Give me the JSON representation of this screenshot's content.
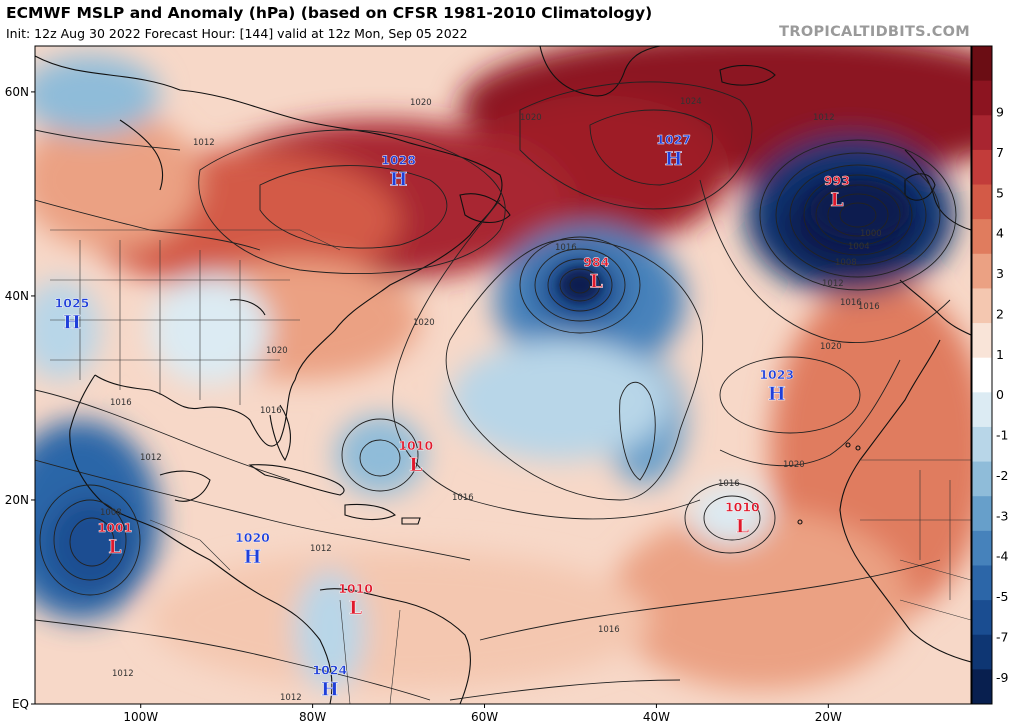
{
  "header": {
    "title": "ECMWF MSLP and Anomaly (hPa) (based on CFSR 1981-2010 Climatology)",
    "subtitle": "Init: 12z Aug 30 2022   Forecast Hour: [144]   valid at 12z Mon, Sep 05 2022",
    "credit": "TROPICALTIDBITS.COM"
  },
  "axes": {
    "lat_labels": [
      "60N",
      "40N",
      "20N",
      "EQ"
    ],
    "lon_labels": [
      "100W",
      "80W",
      "60W",
      "40W",
      "20W"
    ]
  },
  "colorbar": {
    "labels": [
      "9",
      "7",
      "5",
      "4",
      "3",
      "2",
      "1",
      "0",
      "-1",
      "-2",
      "-3",
      "-4",
      "-5",
      "-7",
      "-9"
    ],
    "colors": [
      "#6b0d14",
      "#8c1420",
      "#a82530",
      "#c23c3a",
      "#d35a47",
      "#e07c5e",
      "#eba183",
      "#f4c7b0",
      "#f9e4d8",
      "#ffffff",
      "#dcebf3",
      "#b8d6e8",
      "#8fbcd9",
      "#679fca",
      "#4682bb",
      "#2c66a8",
      "#1a4d91",
      "#0e3673",
      "#081f4f"
    ]
  },
  "pressure_centers": [
    {
      "id": "canada-high",
      "value": "1028",
      "type": "H",
      "lat": 52,
      "lon": -70
    },
    {
      "id": "atlantic-high-north",
      "value": "1027",
      "type": "H",
      "lat": 54,
      "lon": -38
    },
    {
      "id": "east-atlantic-low",
      "value": "993",
      "type": "L",
      "lat": 50,
      "lon": -19
    },
    {
      "id": "central-atlantic-low",
      "value": "984",
      "type": "L",
      "lat": 42,
      "lon": -47
    },
    {
      "id": "west-high",
      "value": "1025",
      "type": "H",
      "lat": 38,
      "lon": -108
    },
    {
      "id": "azores-high",
      "value": "1023",
      "type": "H",
      "lat": 31,
      "lon": -26
    },
    {
      "id": "bahamas-low",
      "value": "1010",
      "type": "L",
      "lat": 24,
      "lon": -68
    },
    {
      "id": "cape-verde-low",
      "value": "1010",
      "type": "L",
      "lat": 18,
      "lon": -30
    },
    {
      "id": "pacific-low",
      "value": "1001",
      "type": "L",
      "lat": 16,
      "lon": -103
    },
    {
      "id": "central-america-high",
      "value": "1020",
      "type": "H",
      "lat": 15,
      "lon": -87
    },
    {
      "id": "colombia-low",
      "value": "1010",
      "type": "L",
      "lat": 10,
      "lon": -75
    },
    {
      "id": "andes-high",
      "value": "1024",
      "type": "H",
      "lat": 2,
      "lon": -78
    }
  ],
  "isobar_labels": [
    "1012",
    "1020",
    "1020",
    "1016",
    "1012",
    "1020",
    "1016",
    "1012",
    "1016",
    "1016",
    "1016",
    "1016",
    "1016",
    "1020",
    "1020",
    "1008",
    "1012",
    "1012",
    "1012",
    "1024",
    "1020",
    "1016",
    "1012",
    "1008",
    "1004",
    "1000"
  ],
  "colors": {
    "high": "#1f3fd9",
    "low": "#e0192c"
  }
}
